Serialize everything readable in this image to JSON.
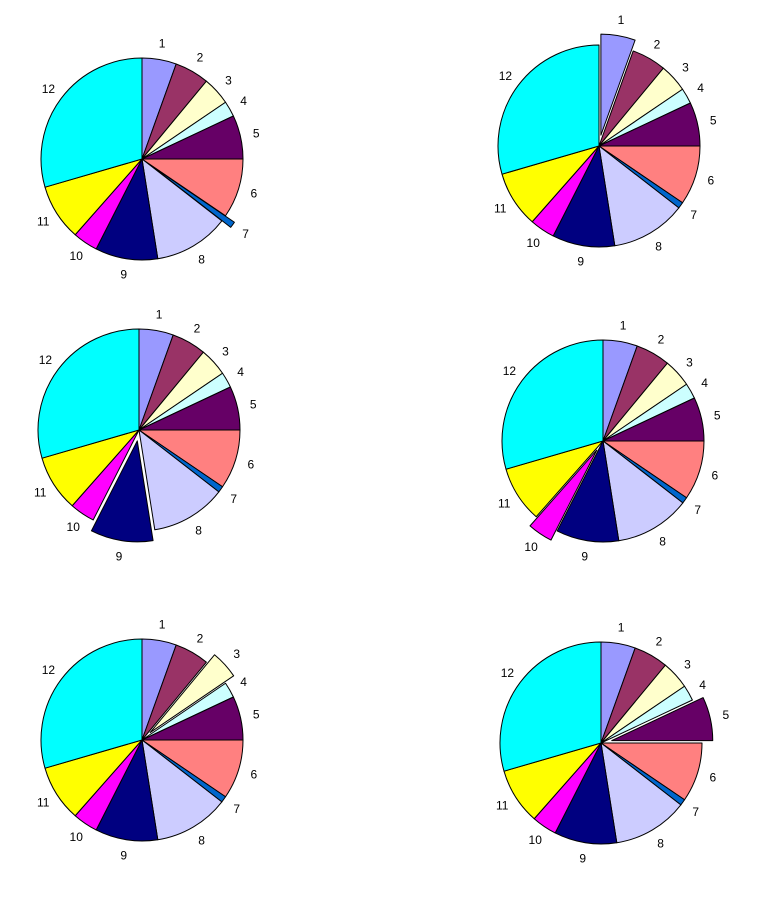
{
  "chart_data": [
    {
      "type": "pie",
      "title": "",
      "exploded": "7",
      "slices": [
        {
          "label": "1",
          "value": 5.5
        },
        {
          "label": "2",
          "value": 5.5
        },
        {
          "label": "3",
          "value": 4.5
        },
        {
          "label": "4",
          "value": 2.5
        },
        {
          "label": "5",
          "value": 7.0
        },
        {
          "label": "6",
          "value": 9.5
        },
        {
          "label": "7",
          "value": 1.0
        },
        {
          "label": "8",
          "value": 12.0
        },
        {
          "label": "9",
          "value": 10.0
        },
        {
          "label": "10",
          "value": 4.0
        },
        {
          "label": "11",
          "value": 9.0
        },
        {
          "label": "12",
          "value": 29.5
        }
      ]
    },
    {
      "type": "pie",
      "title": "",
      "exploded": "1",
      "slices": [
        {
          "label": "1",
          "value": 5.5
        },
        {
          "label": "2",
          "value": 5.5
        },
        {
          "label": "3",
          "value": 4.5
        },
        {
          "label": "4",
          "value": 2.5
        },
        {
          "label": "5",
          "value": 7.0
        },
        {
          "label": "6",
          "value": 9.5
        },
        {
          "label": "7",
          "value": 1.0
        },
        {
          "label": "8",
          "value": 12.0
        },
        {
          "label": "9",
          "value": 10.0
        },
        {
          "label": "10",
          "value": 4.0
        },
        {
          "label": "11",
          "value": 9.0
        },
        {
          "label": "12",
          "value": 29.5
        }
      ]
    },
    {
      "type": "pie",
      "title": "",
      "exploded": "9",
      "slices": [
        {
          "label": "1",
          "value": 5.5
        },
        {
          "label": "2",
          "value": 5.5
        },
        {
          "label": "3",
          "value": 4.5
        },
        {
          "label": "4",
          "value": 2.5
        },
        {
          "label": "5",
          "value": 7.0
        },
        {
          "label": "6",
          "value": 9.5
        },
        {
          "label": "7",
          "value": 1.0
        },
        {
          "label": "8",
          "value": 12.0
        },
        {
          "label": "9",
          "value": 10.0
        },
        {
          "label": "10",
          "value": 4.0
        },
        {
          "label": "11",
          "value": 9.0
        },
        {
          "label": "12",
          "value": 29.5
        }
      ]
    },
    {
      "type": "pie",
      "title": "",
      "exploded": "10",
      "slices": [
        {
          "label": "1",
          "value": 5.5
        },
        {
          "label": "2",
          "value": 5.5
        },
        {
          "label": "3",
          "value": 4.5
        },
        {
          "label": "4",
          "value": 2.5
        },
        {
          "label": "5",
          "value": 7.0
        },
        {
          "label": "6",
          "value": 9.5
        },
        {
          "label": "7",
          "value": 1.0
        },
        {
          "label": "8",
          "value": 12.0
        },
        {
          "label": "9",
          "value": 10.0
        },
        {
          "label": "10",
          "value": 4.0
        },
        {
          "label": "11",
          "value": 9.0
        },
        {
          "label": "12",
          "value": 29.5
        }
      ]
    },
    {
      "type": "pie",
      "title": "",
      "exploded": "3",
      "slices": [
        {
          "label": "1",
          "value": 5.5
        },
        {
          "label": "2",
          "value": 5.5
        },
        {
          "label": "3",
          "value": 4.5
        },
        {
          "label": "4",
          "value": 2.5
        },
        {
          "label": "5",
          "value": 7.0
        },
        {
          "label": "6",
          "value": 9.5
        },
        {
          "label": "7",
          "value": 1.0
        },
        {
          "label": "8",
          "value": 12.0
        },
        {
          "label": "9",
          "value": 10.0
        },
        {
          "label": "10",
          "value": 4.0
        },
        {
          "label": "11",
          "value": 9.0
        },
        {
          "label": "12",
          "value": 29.5
        }
      ]
    },
    {
      "type": "pie",
      "title": "",
      "exploded": "5",
      "slices": [
        {
          "label": "1",
          "value": 5.5
        },
        {
          "label": "2",
          "value": 5.5
        },
        {
          "label": "3",
          "value": 4.5
        },
        {
          "label": "4",
          "value": 2.5
        },
        {
          "label": "5",
          "value": 7.0
        },
        {
          "label": "6",
          "value": 9.5
        },
        {
          "label": "7",
          "value": 1.0
        },
        {
          "label": "8",
          "value": 12.0
        },
        {
          "label": "9",
          "value": 10.0
        },
        {
          "label": "10",
          "value": 4.0
        },
        {
          "label": "11",
          "value": 9.0
        },
        {
          "label": "12",
          "value": 29.5
        }
      ]
    }
  ],
  "colors": {
    "1": "#9999ff",
    "2": "#993366",
    "3": "#ffffcc",
    "4": "#ccffff",
    "5": "#660066",
    "6": "#ff8080",
    "7": "#0066cc",
    "8": "#ccccff",
    "9": "#000080",
    "10": "#ff00ff",
    "11": "#ffff00",
    "12": "#00ffff"
  }
}
